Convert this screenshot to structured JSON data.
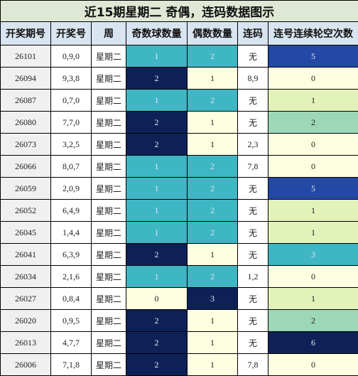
{
  "chart_data": {
    "type": "table",
    "title": "近15期星期二 奇偶，连码数据图示",
    "columns": [
      "开奖期号",
      "开奖号",
      "周",
      "奇数球数量",
      "偶数数量",
      "连码",
      "连号连续轮空次数"
    ],
    "rows": [
      {
        "issue": "26101",
        "numbers": "0,9,0",
        "weekday": "星期二",
        "odd": 1,
        "even": 2,
        "consec": "无",
        "miss": 5
      },
      {
        "issue": "26094",
        "numbers": "9,3,8",
        "weekday": "星期二",
        "odd": 2,
        "even": 1,
        "consec": "8,9",
        "miss": 0
      },
      {
        "issue": "26087",
        "numbers": "0,7,0",
        "weekday": "星期二",
        "odd": 1,
        "even": 2,
        "consec": "无",
        "miss": 1
      },
      {
        "issue": "26080",
        "numbers": "7,7,0",
        "weekday": "星期二",
        "odd": 2,
        "even": 1,
        "consec": "无",
        "miss": 2
      },
      {
        "issue": "26073",
        "numbers": "3,2,5",
        "weekday": "星期二",
        "odd": 2,
        "even": 1,
        "consec": "2,3",
        "miss": 0
      },
      {
        "issue": "26066",
        "numbers": "8,0,7",
        "weekday": "星期二",
        "odd": 1,
        "even": 2,
        "consec": "7,8",
        "miss": 0
      },
      {
        "issue": "26059",
        "numbers": "2,0,9",
        "weekday": "星期二",
        "odd": 1,
        "even": 2,
        "consec": "无",
        "miss": 5
      },
      {
        "issue": "26052",
        "numbers": "6,4,9",
        "weekday": "星期二",
        "odd": 1,
        "even": 2,
        "consec": "无",
        "miss": 1
      },
      {
        "issue": "26045",
        "numbers": "1,4,4",
        "weekday": "星期二",
        "odd": 1,
        "even": 2,
        "consec": "无",
        "miss": 1
      },
      {
        "issue": "26041",
        "numbers": "6,3,9",
        "weekday": "星期二",
        "odd": 2,
        "even": 1,
        "consec": "无",
        "miss": 3
      },
      {
        "issue": "26034",
        "numbers": "2,1,6",
        "weekday": "星期二",
        "odd": 1,
        "even": 2,
        "consec": "1,2",
        "miss": 0
      },
      {
        "issue": "26027",
        "numbers": "0,8,4",
        "weekday": "星期二",
        "odd": 0,
        "even": 3,
        "consec": "无",
        "miss": 1
      },
      {
        "issue": "26020",
        "numbers": "0,9,5",
        "weekday": "星期二",
        "odd": 2,
        "even": 1,
        "consec": "无",
        "miss": 2
      },
      {
        "issue": "26013",
        "numbers": "4,7,7",
        "weekday": "星期二",
        "odd": 2,
        "even": 1,
        "consec": "无",
        "miss": 6
      },
      {
        "issue": "26006",
        "numbers": "7,1,8",
        "weekday": "星期二",
        "odd": 2,
        "even": 1,
        "consec": "7,8",
        "miss": 0
      }
    ]
  },
  "colors": {
    "title_bg": "#dfe8d4",
    "header_bg": "#d8e4f0",
    "issue_bg": "#f0f0f0",
    "count_0": "#fefee0",
    "count_1_odd": "#3fb6c4",
    "count_2_odd": "#0e2157",
    "count_3": "#0e2157",
    "even_1": "#fefee0",
    "even_2": "#3fb6c4",
    "even_3": "#0e2157",
    "miss_0": "#fefee0",
    "miss_1": "#e2f2b8",
    "miss_2": "#9cd7b8",
    "miss_3": "#3fb6c4",
    "miss_5": "#2349a4",
    "miss_6": "#0e2157"
  }
}
